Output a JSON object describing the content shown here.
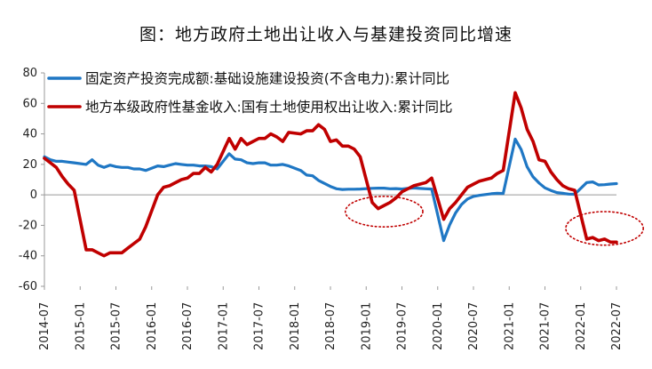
{
  "figure_title": "图：地方政府土地出让收入与基建投资同比增速",
  "chart_data": {
    "type": "line",
    "title": "图：地方政府土地出让收入与基建投资同比增速",
    "xlabel": "",
    "ylabel": "",
    "ylim": [
      -60,
      80
    ],
    "yticks": [
      "80",
      "60",
      "40",
      "20",
      "0",
      "-20",
      "-40",
      "-60"
    ],
    "yvals": [
      80,
      60,
      40,
      20,
      0,
      -20,
      -40,
      -60
    ],
    "xticks": [
      "2014-07",
      "2015-01",
      "2015-07",
      "2016-01",
      "2016-07",
      "2017-01",
      "2017-07",
      "2018-01",
      "2018-07",
      "2019-01",
      "2019-07",
      "2020-01",
      "2020-07",
      "2021-01",
      "2021-07",
      "2022-01",
      "2022-07"
    ],
    "grid": false,
    "legend_position": "top-left",
    "series": [
      {
        "name": "固定资产投资完成额:基础设施建设投资(不含电力):累计同比",
        "color": "#1f77c4",
        "points": [
          [
            "2014-07",
            25
          ],
          [
            "2014-08",
            23
          ],
          [
            "2014-09",
            22
          ],
          [
            "2014-10",
            22
          ],
          [
            "2014-11",
            21.5
          ],
          [
            "2014-12",
            21
          ],
          [
            "2015-02",
            20
          ],
          [
            "2015-03",
            23
          ],
          [
            "2015-04",
            19.5
          ],
          [
            "2015-05",
            18
          ],
          [
            "2015-06",
            19.5
          ],
          [
            "2015-07",
            18.5
          ],
          [
            "2015-08",
            18
          ],
          [
            "2015-09",
            18
          ],
          [
            "2015-10",
            17
          ],
          [
            "2015-11",
            17
          ],
          [
            "2015-12",
            16
          ],
          [
            "2016-02",
            19
          ],
          [
            "2016-03",
            18.5
          ],
          [
            "2016-04",
            19.5
          ],
          [
            "2016-05",
            20.5
          ],
          [
            "2016-06",
            20
          ],
          [
            "2016-07",
            19.5
          ],
          [
            "2016-08",
            19.5
          ],
          [
            "2016-09",
            19
          ],
          [
            "2016-10",
            19
          ],
          [
            "2016-11",
            18.5
          ],
          [
            "2016-12",
            17
          ],
          [
            "2017-02",
            27
          ],
          [
            "2017-03",
            23.5
          ],
          [
            "2017-04",
            23
          ],
          [
            "2017-05",
            21
          ],
          [
            "2017-06",
            20.5
          ],
          [
            "2017-07",
            21
          ],
          [
            "2017-08",
            21
          ],
          [
            "2017-09",
            19.5
          ],
          [
            "2017-10",
            19.5
          ],
          [
            "2017-11",
            20
          ],
          [
            "2017-12",
            19
          ],
          [
            "2018-02",
            16
          ],
          [
            "2018-03",
            13
          ],
          [
            "2018-04",
            12.5
          ],
          [
            "2018-05",
            9.5
          ],
          [
            "2018-06",
            7.5
          ],
          [
            "2018-07",
            5.5
          ],
          [
            "2018-08",
            4
          ],
          [
            "2018-09",
            3.5
          ],
          [
            "2018-10",
            3.7
          ],
          [
            "2018-11",
            3.7
          ],
          [
            "2018-12",
            3.8
          ],
          [
            "2019-02",
            4.3
          ],
          [
            "2019-03",
            4.4
          ],
          [
            "2019-04",
            4.4
          ],
          [
            "2019-05",
            4
          ],
          [
            "2019-06",
            4.1
          ],
          [
            "2019-07",
            3.8
          ],
          [
            "2019-08",
            4.2
          ],
          [
            "2019-09",
            4.5
          ],
          [
            "2019-10",
            4.2
          ],
          [
            "2019-11",
            4
          ],
          [
            "2019-12",
            3.8
          ],
          [
            "2020-02",
            -30
          ],
          [
            "2020-03",
            -19.7
          ],
          [
            "2020-04",
            -11.8
          ],
          [
            "2020-05",
            -6.3
          ],
          [
            "2020-06",
            -2.7
          ],
          [
            "2020-07",
            -1
          ],
          [
            "2020-08",
            -0.3
          ],
          [
            "2020-09",
            0.2
          ],
          [
            "2020-10",
            0.7
          ],
          [
            "2020-11",
            1
          ],
          [
            "2020-12",
            0.9
          ],
          [
            "2021-02",
            36.6
          ],
          [
            "2021-03",
            29.7
          ],
          [
            "2021-04",
            18.4
          ],
          [
            "2021-05",
            11.8
          ],
          [
            "2021-06",
            7.8
          ],
          [
            "2021-07",
            4.6
          ],
          [
            "2021-08",
            2.9
          ],
          [
            "2021-09",
            1.5
          ],
          [
            "2021-10",
            1
          ],
          [
            "2021-11",
            0.5
          ],
          [
            "2021-12",
            0.4
          ],
          [
            "2022-02",
            8.1
          ],
          [
            "2022-03",
            8.5
          ],
          [
            "2022-04",
            6.5
          ],
          [
            "2022-05",
            6.7
          ],
          [
            "2022-06",
            7.1
          ],
          [
            "2022-07",
            7.4
          ]
        ]
      },
      {
        "name": "地方方本级政府性基金收入:国有土地使用权出让收入:累计同比",
        "display_name": "地方本级政府性基金收入:国有土地使用权出让收入:累计同比",
        "color": "#c00000",
        "points": [
          [
            "2014-07",
            24
          ],
          [
            "2014-08",
            21
          ],
          [
            "2014-09",
            18
          ],
          [
            "2014-10",
            12
          ],
          [
            "2014-11",
            7
          ],
          [
            "2014-12",
            3
          ],
          [
            "2015-02",
            -36
          ],
          [
            "2015-03",
            -36
          ],
          [
            "2015-04",
            -38
          ],
          [
            "2015-05",
            -40
          ],
          [
            "2015-06",
            -38
          ],
          [
            "2015-07",
            -38
          ],
          [
            "2015-08",
            -38
          ],
          [
            "2015-09",
            -35
          ],
          [
            "2015-10",
            -32
          ],
          [
            "2015-11",
            -29
          ],
          [
            "2015-12",
            -21
          ],
          [
            "2016-02",
            0
          ],
          [
            "2016-03",
            5
          ],
          [
            "2016-04",
            6
          ],
          [
            "2016-05",
            8
          ],
          [
            "2016-06",
            10
          ],
          [
            "2016-07",
            11
          ],
          [
            "2016-08",
            14
          ],
          [
            "2016-09",
            14
          ],
          [
            "2016-10",
            18
          ],
          [
            "2016-11",
            15
          ],
          [
            "2016-12",
            20
          ],
          [
            "2017-02",
            37
          ],
          [
            "2017-03",
            30
          ],
          [
            "2017-04",
            37
          ],
          [
            "2017-05",
            33
          ],
          [
            "2017-06",
            35
          ],
          [
            "2017-07",
            37
          ],
          [
            "2017-08",
            37
          ],
          [
            "2017-09",
            40
          ],
          [
            "2017-10",
            38
          ],
          [
            "2017-11",
            35
          ],
          [
            "2017-12",
            41
          ],
          [
            "2018-02",
            40
          ],
          [
            "2018-03",
            42
          ],
          [
            "2018-04",
            42
          ],
          [
            "2018-05",
            46
          ],
          [
            "2018-06",
            43
          ],
          [
            "2018-07",
            35
          ],
          [
            "2018-08",
            36
          ],
          [
            "2018-09",
            32
          ],
          [
            "2018-10",
            32
          ],
          [
            "2018-11",
            30
          ],
          [
            "2018-12",
            25
          ],
          [
            "2019-02",
            -5
          ],
          [
            "2019-03",
            -9
          ],
          [
            "2019-04",
            -7
          ],
          [
            "2019-05",
            -5
          ],
          [
            "2019-06",
            -2
          ],
          [
            "2019-07",
            2
          ],
          [
            "2019-08",
            4
          ],
          [
            "2019-09",
            6
          ],
          [
            "2019-10",
            7
          ],
          [
            "2019-11",
            8
          ],
          [
            "2019-12",
            11
          ],
          [
            "2020-02",
            -16
          ],
          [
            "2020-03",
            -9
          ],
          [
            "2020-04",
            -5
          ],
          [
            "2020-05",
            0
          ],
          [
            "2020-06",
            5
          ],
          [
            "2020-07",
            7
          ],
          [
            "2020-08",
            9
          ],
          [
            "2020-09",
            10
          ],
          [
            "2020-10",
            11
          ],
          [
            "2020-11",
            14
          ],
          [
            "2020-12",
            16
          ],
          [
            "2021-02",
            67
          ],
          [
            "2021-03",
            57
          ],
          [
            "2021-04",
            43
          ],
          [
            "2021-05",
            35
          ],
          [
            "2021-06",
            23
          ],
          [
            "2021-07",
            22
          ],
          [
            "2021-08",
            15
          ],
          [
            "2021-09",
            10
          ],
          [
            "2021-10",
            6
          ],
          [
            "2021-11",
            4
          ],
          [
            "2021-12",
            3
          ],
          [
            "2022-02",
            -29
          ],
          [
            "2022-03",
            -28
          ],
          [
            "2022-04",
            -30
          ],
          [
            "2022-05",
            -29
          ],
          [
            "2022-06",
            -31
          ],
          [
            "2022-07",
            -31
          ]
        ]
      }
    ],
    "annotations": [
      {
        "type": "dotted-ellipse",
        "color": "#c00000",
        "center_x": "2019-04",
        "center_y": -11,
        "rx_months": 6.5,
        "ry": 10
      },
      {
        "type": "dotted-ellipse",
        "color": "#c00000",
        "center_x": "2022-05",
        "center_y": -22,
        "rx_months": 6.5,
        "ry": 11
      }
    ]
  }
}
